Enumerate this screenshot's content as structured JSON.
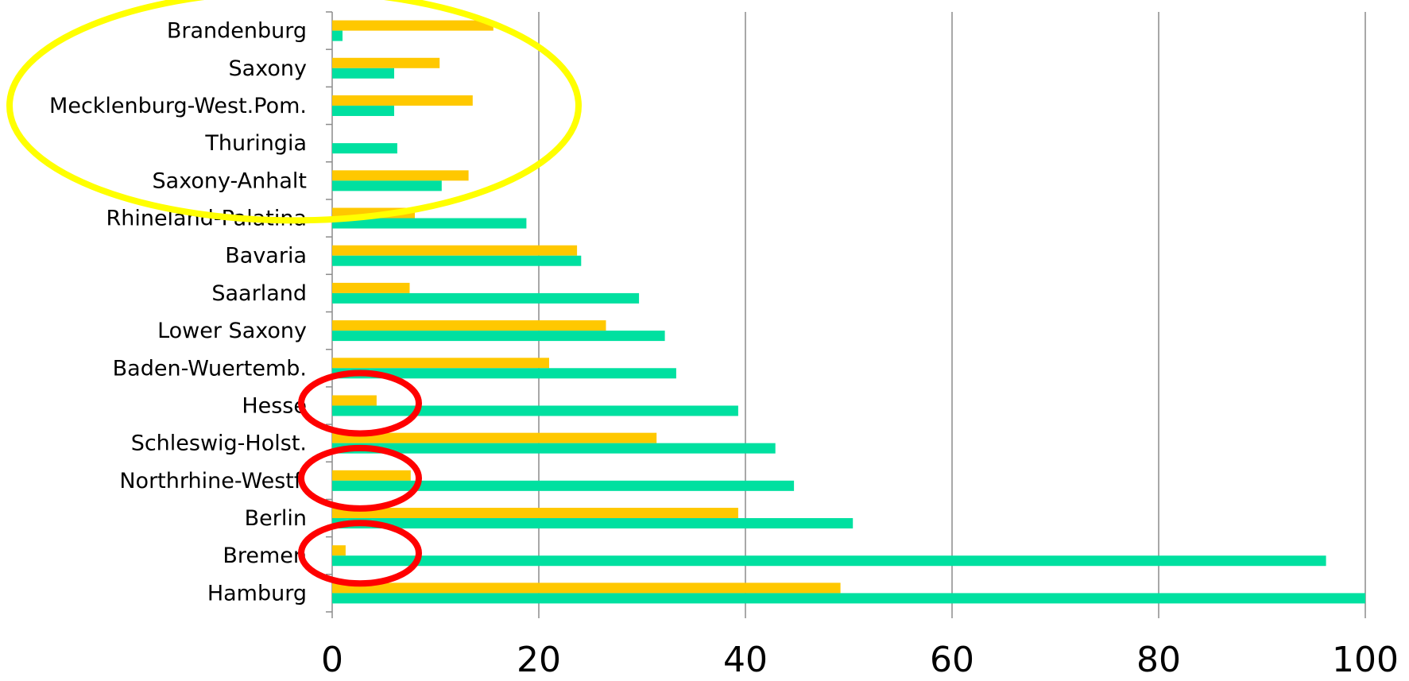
{
  "chart_data": {
    "type": "bar",
    "orientation": "horizontal",
    "categories": [
      "Hamburg",
      "Bremen",
      "Berlin",
      "Northrhine-Westf.",
      "Schleswig-Holst.",
      "Hesse",
      "Baden-Wuertemb.",
      "Lower Saxony",
      "Saarland",
      "Bavaria",
      "Rhineland-Palatina",
      "Saxony-Anhalt",
      "Thuringia",
      "Mecklenburg-West.Pom.",
      "Saxony",
      "Brandenburg"
    ],
    "series": [
      {
        "color": "#FFC800",
        "values": [
          49.2,
          1.3,
          39.3,
          7.6,
          31.4,
          4.3,
          21.0,
          26.5,
          7.5,
          23.7,
          8.0,
          13.2,
          0,
          13.6,
          10.4,
          15.6
        ]
      },
      {
        "color": "#00E0A0",
        "values": [
          100.0,
          96.2,
          50.4,
          44.7,
          42.9,
          39.3,
          33.3,
          32.2,
          29.7,
          24.1,
          18.8,
          10.6,
          6.3,
          6.0,
          6.0,
          1.0
        ]
      }
    ],
    "xlim": [
      0,
      100
    ],
    "xticks": [
      "0",
      "20",
      "40",
      "60",
      "80",
      "100"
    ],
    "grid": true,
    "legend": "none",
    "annotations": [
      {
        "shape": "ellipse",
        "color": "#FFFF00",
        "marks": [
          "Brandenburg",
          "Saxony",
          "Mecklenburg-West.Pom.",
          "Thuringia",
          "Saxony-Anhalt"
        ]
      },
      {
        "shape": "ellipse",
        "color": "#FF0000",
        "marks": [
          "Hesse"
        ]
      },
      {
        "shape": "ellipse",
        "color": "#FF0000",
        "marks": [
          "Northrhine-Westf."
        ]
      },
      {
        "shape": "ellipse",
        "color": "#FF0000",
        "marks": [
          "Bremen"
        ]
      }
    ]
  }
}
